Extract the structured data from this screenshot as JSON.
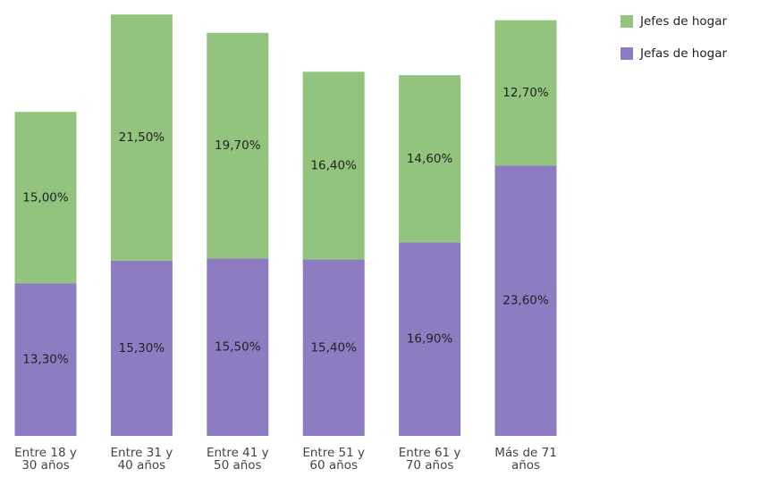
{
  "chart_data": {
    "type": "stacked-bar",
    "categories": [
      "Entre 18 y 30 años",
      "Entre 31 y 40 años",
      "Entre 41 y 50 años",
      "Entre 51 y 60 años",
      "Entre 61 y 70 años",
      "Más de 71 años"
    ],
    "series": [
      {
        "name": "Jefes de hogar",
        "color": "#93c47d",
        "values": [
          15.0,
          21.5,
          19.7,
          16.4,
          14.6,
          12.7
        ],
        "value_labels": [
          "15,00%",
          "21,50%",
          "19,70%",
          "16,40%",
          "14,60%",
          "12,70%"
        ]
      },
      {
        "name": "Jefas de hogar",
        "color": "#8e7cc3",
        "values": [
          13.3,
          15.3,
          15.5,
          15.4,
          16.9,
          23.6
        ],
        "value_labels": [
          "13,30%",
          "15,30%",
          "15,50%",
          "15,40%",
          "16,90%",
          "23,60%"
        ]
      }
    ],
    "legend": "top-right"
  }
}
